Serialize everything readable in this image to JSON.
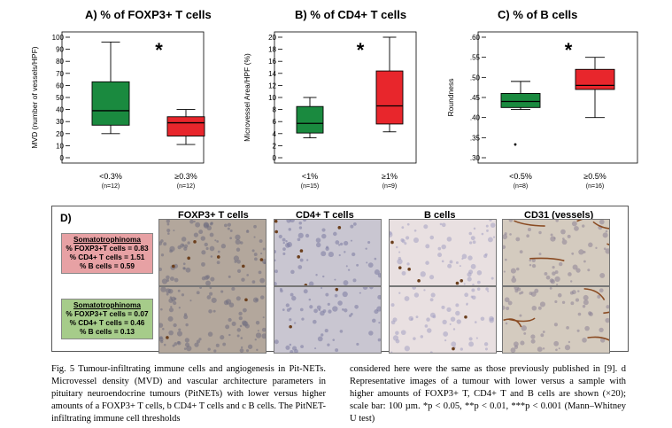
{
  "panels": [
    {
      "id": "A",
      "title": "A) % of FOXP3+ T cells",
      "ylabel": "MVD (number of vessels/HPF)",
      "ylim": [
        0,
        100
      ],
      "yticks": [
        0,
        10,
        20,
        30,
        40,
        50,
        60,
        70,
        80,
        90,
        100
      ],
      "ytick_labels": [
        "0",
        "10",
        "20",
        "30",
        "40",
        "50",
        "60",
        "70",
        "80",
        "90",
        "100"
      ],
      "star": "*",
      "groups": [
        {
          "label": "<0.3%",
          "n": "(n=12)",
          "min": 20,
          "q1": 27,
          "median": 39,
          "q3": 63,
          "max": 96,
          "color": "#1a8a3f",
          "outliers": []
        },
        {
          "label": "≥0.3%",
          "n": "(n=12)",
          "min": 11,
          "q1": 18,
          "median": 29,
          "q3": 34,
          "max": 40,
          "color": "#e8262c",
          "outliers": []
        }
      ]
    },
    {
      "id": "B",
      "title": "B) % of CD4+ T cells",
      "ylabel": "Microvessel Area/HPF (%)",
      "ylim": [
        0,
        20
      ],
      "yticks": [
        0,
        2,
        4,
        6,
        8,
        10,
        12,
        14,
        16,
        18,
        20
      ],
      "ytick_labels": [
        "0",
        "2",
        "4",
        "6",
        "8",
        "10",
        "12",
        "14",
        "16",
        "18",
        "20"
      ],
      "star": "*",
      "groups": [
        {
          "label": "<1%",
          "n": "(n=15)",
          "min": 3.3,
          "q1": 4.1,
          "median": 5.7,
          "q3": 8.5,
          "max": 10,
          "color": "#1a8a3f",
          "outliers": []
        },
        {
          "label": "≥1%",
          "n": "(n=9)",
          "min": 4.3,
          "q1": 5.6,
          "median": 8.6,
          "q3": 14.4,
          "max": 20,
          "color": "#e8262c",
          "outliers": []
        }
      ]
    },
    {
      "id": "C",
      "title": "C) % of B cells",
      "ylabel": "Roundness",
      "ylim": [
        0.3,
        0.6
      ],
      "yticks": [
        0.3,
        0.35,
        0.4,
        0.45,
        0.5,
        0.55,
        0.6
      ],
      "ytick_labels": [
        ".30",
        ".35",
        ".40",
        ".45",
        ".50",
        ".55",
        ".60"
      ],
      "star": "*",
      "groups": [
        {
          "label": "<0.5%",
          "n": "(n=8)",
          "min": 0.42,
          "q1": 0.425,
          "median": 0.44,
          "q3": 0.46,
          "max": 0.49,
          "color": "#1a8a3f",
          "outliers": [
            0.333
          ]
        },
        {
          "label": "≥0.5%",
          "n": "(n=16)",
          "min": 0.4,
          "q1": 0.47,
          "median": 0.48,
          "q3": 0.52,
          "max": 0.55,
          "color": "#e8262c",
          "outliers": []
        }
      ]
    }
  ],
  "panel_d": {
    "label": "D)",
    "columns": [
      "FOXP3+ T cells",
      "CD4+ T cells",
      "B cells",
      "CD31 (vessels)"
    ],
    "rows": [
      {
        "title": "Somatotrophinoma",
        "lines": [
          "% FOXP3+T cells = 0.83",
          "% CD4+ T cells = 1.51",
          "% B cells =  0.59"
        ],
        "color": "#e7a1a4"
      },
      {
        "title": "Somatotrophinoma",
        "lines": [
          "% FOXP3+T cells = 0.07",
          "% CD4+ T cells = 0.46",
          "% B cells = 0.13"
        ],
        "color": "#a6cc8a"
      }
    ]
  },
  "caption": {
    "left": "Fig. 5 Tumour-infiltrating immune cells and angiogenesis in Pit-NETs. Microvessel density (MVD) and vascular architecture parameters in pituitary neuroendocrine tumours (PitNETs) with lower versus higher amounts of a FOXP3+ T cells, b CD4+ T cells and c B cells. The PitNET-infiltrating immune cell thresholds",
    "right": "considered here were the same as those previously published in [9]. d Representative images of a tumour with lower versus a sample with higher amounts of FOXP3+ T, CD4+ T and B cells are shown (×20); scale bar: 100 µm. *p < 0.05, **p < 0.01, ***p < 0.001 (Mann–Whitney U test)"
  }
}
